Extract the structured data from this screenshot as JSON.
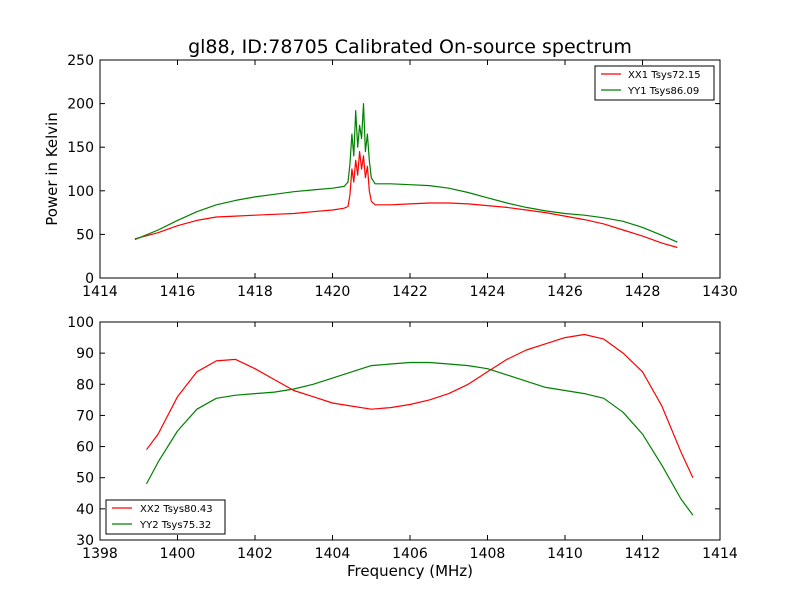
{
  "chart_data": [
    {
      "type": "line",
      "title": "gl88, ID:78705 Calibrated On-source spectrum",
      "xlabel": "",
      "ylabel": "Power in Kelvin",
      "xlim": [
        1414,
        1430
      ],
      "ylim": [
        0,
        250
      ],
      "xticks": [
        "1414",
        "1416",
        "1418",
        "1420",
        "1422",
        "1424",
        "1426",
        "1428",
        "1430"
      ],
      "yticks": [
        "0",
        "50",
        "100",
        "150",
        "200",
        "250"
      ],
      "legend_position": "top-right",
      "series": [
        {
          "name": "XX1 Tsys72.15",
          "color": "#ff0000",
          "points": [
            [
              1414.9,
              45
            ],
            [
              1415.5,
              52
            ],
            [
              1416,
              60
            ],
            [
              1416.5,
              66
            ],
            [
              1417,
              70
            ],
            [
              1417.5,
              71
            ],
            [
              1418,
              72
            ],
            [
              1418.5,
              73
            ],
            [
              1419,
              74
            ],
            [
              1419.5,
              76
            ],
            [
              1420,
              78
            ],
            [
              1420.3,
              80
            ],
            [
              1420.4,
              82
            ],
            [
              1420.45,
              95
            ],
            [
              1420.5,
              125
            ],
            [
              1420.55,
              110
            ],
            [
              1420.6,
              135
            ],
            [
              1420.65,
              118
            ],
            [
              1420.7,
              145
            ],
            [
              1420.75,
              125
            ],
            [
              1420.8,
              140
            ],
            [
              1420.85,
              115
            ],
            [
              1420.9,
              128
            ],
            [
              1420.95,
              100
            ],
            [
              1421,
              88
            ],
            [
              1421.1,
              84
            ],
            [
              1421.5,
              84
            ],
            [
              1422,
              85
            ],
            [
              1422.5,
              86
            ],
            [
              1423,
              86
            ],
            [
              1423.5,
              85
            ],
            [
              1424,
              83
            ],
            [
              1424.5,
              81
            ],
            [
              1425,
              78
            ],
            [
              1425.5,
              75
            ],
            [
              1426,
              71
            ],
            [
              1426.5,
              67
            ],
            [
              1427,
              62
            ],
            [
              1427.5,
              55
            ],
            [
              1428,
              48
            ],
            [
              1428.5,
              40
            ],
            [
              1428.9,
              35
            ]
          ]
        },
        {
          "name": "YY1 Tsys86.09",
          "color": "#008000",
          "points": [
            [
              1414.9,
              44
            ],
            [
              1415.5,
              55
            ],
            [
              1416,
              66
            ],
            [
              1416.5,
              76
            ],
            [
              1417,
              84
            ],
            [
              1417.5,
              89
            ],
            [
              1418,
              93
            ],
            [
              1418.5,
              96
            ],
            [
              1419,
              99
            ],
            [
              1419.5,
              101
            ],
            [
              1420,
              103
            ],
            [
              1420.3,
              105
            ],
            [
              1420.4,
              110
            ],
            [
              1420.45,
              130
            ],
            [
              1420.5,
              165
            ],
            [
              1420.55,
              140
            ],
            [
              1420.6,
              192
            ],
            [
              1420.65,
              150
            ],
            [
              1420.7,
              175
            ],
            [
              1420.75,
              160
            ],
            [
              1420.8,
              200
            ],
            [
              1420.85,
              145
            ],
            [
              1420.9,
              165
            ],
            [
              1420.95,
              135
            ],
            [
              1421,
              115
            ],
            [
              1421.1,
              108
            ],
            [
              1421.5,
              108
            ],
            [
              1422,
              107
            ],
            [
              1422.5,
              106
            ],
            [
              1423,
              103
            ],
            [
              1423.5,
              98
            ],
            [
              1424,
              92
            ],
            [
              1424.5,
              86
            ],
            [
              1425,
              81
            ],
            [
              1425.5,
              77
            ],
            [
              1426,
              74
            ],
            [
              1426.5,
              72
            ],
            [
              1427,
              69
            ],
            [
              1427.5,
              65
            ],
            [
              1428,
              58
            ],
            [
              1428.5,
              49
            ],
            [
              1428.9,
              41
            ]
          ]
        }
      ]
    },
    {
      "type": "line",
      "title": "",
      "xlabel": "Frequency (MHz)",
      "ylabel": "",
      "xlim": [
        1398,
        1414
      ],
      "ylim": [
        30,
        100
      ],
      "xticks": [
        "1398",
        "1400",
        "1402",
        "1404",
        "1406",
        "1408",
        "1410",
        "1412",
        "1414"
      ],
      "yticks": [
        "30",
        "40",
        "50",
        "60",
        "70",
        "80",
        "90",
        "100"
      ],
      "legend_position": "bottom-left",
      "series": [
        {
          "name": "XX2 Tsys80.43",
          "color": "#ff0000",
          "points": [
            [
              1399.2,
              59
            ],
            [
              1399.5,
              64
            ],
            [
              1400,
              76
            ],
            [
              1400.5,
              84
            ],
            [
              1401,
              87.5
            ],
            [
              1401.5,
              88
            ],
            [
              1402,
              85
            ],
            [
              1402.5,
              81.5
            ],
            [
              1403,
              78
            ],
            [
              1403.5,
              76
            ],
            [
              1404,
              74
            ],
            [
              1404.5,
              73
            ],
            [
              1405,
              72
            ],
            [
              1405.5,
              72.5
            ],
            [
              1406,
              73.5
            ],
            [
              1406.5,
              75
            ],
            [
              1407,
              77
            ],
            [
              1407.5,
              80
            ],
            [
              1408,
              84
            ],
            [
              1408.5,
              88
            ],
            [
              1409,
              91
            ],
            [
              1409.5,
              93
            ],
            [
              1410,
              95
            ],
            [
              1410.5,
              96
            ],
            [
              1411,
              94.5
            ],
            [
              1411.5,
              90
            ],
            [
              1412,
              84
            ],
            [
              1412.5,
              73
            ],
            [
              1413,
              58
            ],
            [
              1413.3,
              50
            ]
          ]
        },
        {
          "name": "YY2 Tsys75.32",
          "color": "#008000",
          "points": [
            [
              1399.2,
              48
            ],
            [
              1399.5,
              55
            ],
            [
              1400,
              65
            ],
            [
              1400.5,
              72
            ],
            [
              1401,
              75.5
            ],
            [
              1401.5,
              76.5
            ],
            [
              1402,
              77
            ],
            [
              1402.5,
              77.5
            ],
            [
              1403,
              78.5
            ],
            [
              1403.5,
              80
            ],
            [
              1404,
              82
            ],
            [
              1404.5,
              84
            ],
            [
              1405,
              86
            ],
            [
              1405.5,
              86.5
            ],
            [
              1406,
              87
            ],
            [
              1406.5,
              87
            ],
            [
              1407,
              86.5
            ],
            [
              1407.5,
              86
            ],
            [
              1408,
              85
            ],
            [
              1408.5,
              83
            ],
            [
              1409,
              81
            ],
            [
              1409.5,
              79
            ],
            [
              1410,
              78
            ],
            [
              1410.5,
              77
            ],
            [
              1411,
              75.5
            ],
            [
              1411.5,
              71
            ],
            [
              1412,
              64
            ],
            [
              1412.5,
              54
            ],
            [
              1413,
              43
            ],
            [
              1413.3,
              38
            ]
          ]
        }
      ]
    }
  ]
}
